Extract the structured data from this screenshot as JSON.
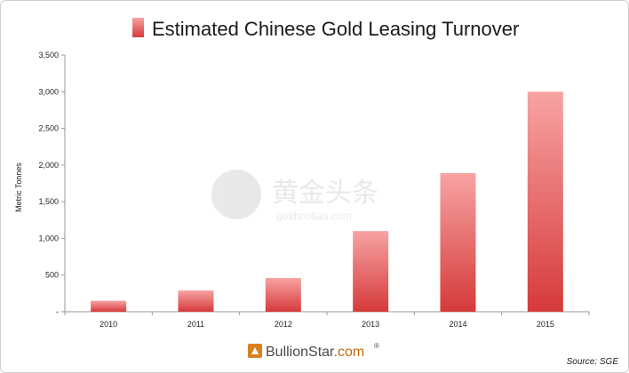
{
  "chart_data": {
    "type": "bar",
    "title": "Estimated Chinese Gold Leasing Turnover",
    "legend": "Estimated Chinese Gold Leasing Turnover",
    "categories": [
      "2010",
      "2011",
      "2012",
      "2013",
      "2014",
      "2015"
    ],
    "values": [
      150,
      290,
      460,
      1100,
      1890,
      3000
    ],
    "ylabel": "Metric Tonnes",
    "xlabel": "",
    "ylim": [
      0,
      3500
    ],
    "yticks": [
      0,
      500,
      1000,
      1500,
      2000,
      2500,
      3000,
      3500
    ],
    "ytick_labels": [
      "-",
      "500",
      "1,000",
      "1,500",
      "2,000",
      "2,500",
      "3,000",
      "3,500"
    ],
    "grid": false,
    "legend_position": "top",
    "bar_color_top": "#f7a3a3",
    "bar_color_bottom": "#d63a3a"
  },
  "source": "Source: SGE",
  "brand": {
    "name": "BullionStar",
    "dot": ".",
    "suffix": "com",
    "reg": "®"
  },
  "watermark": {
    "chinese": "黄金头条",
    "latin": "goldtoutiao.com"
  }
}
